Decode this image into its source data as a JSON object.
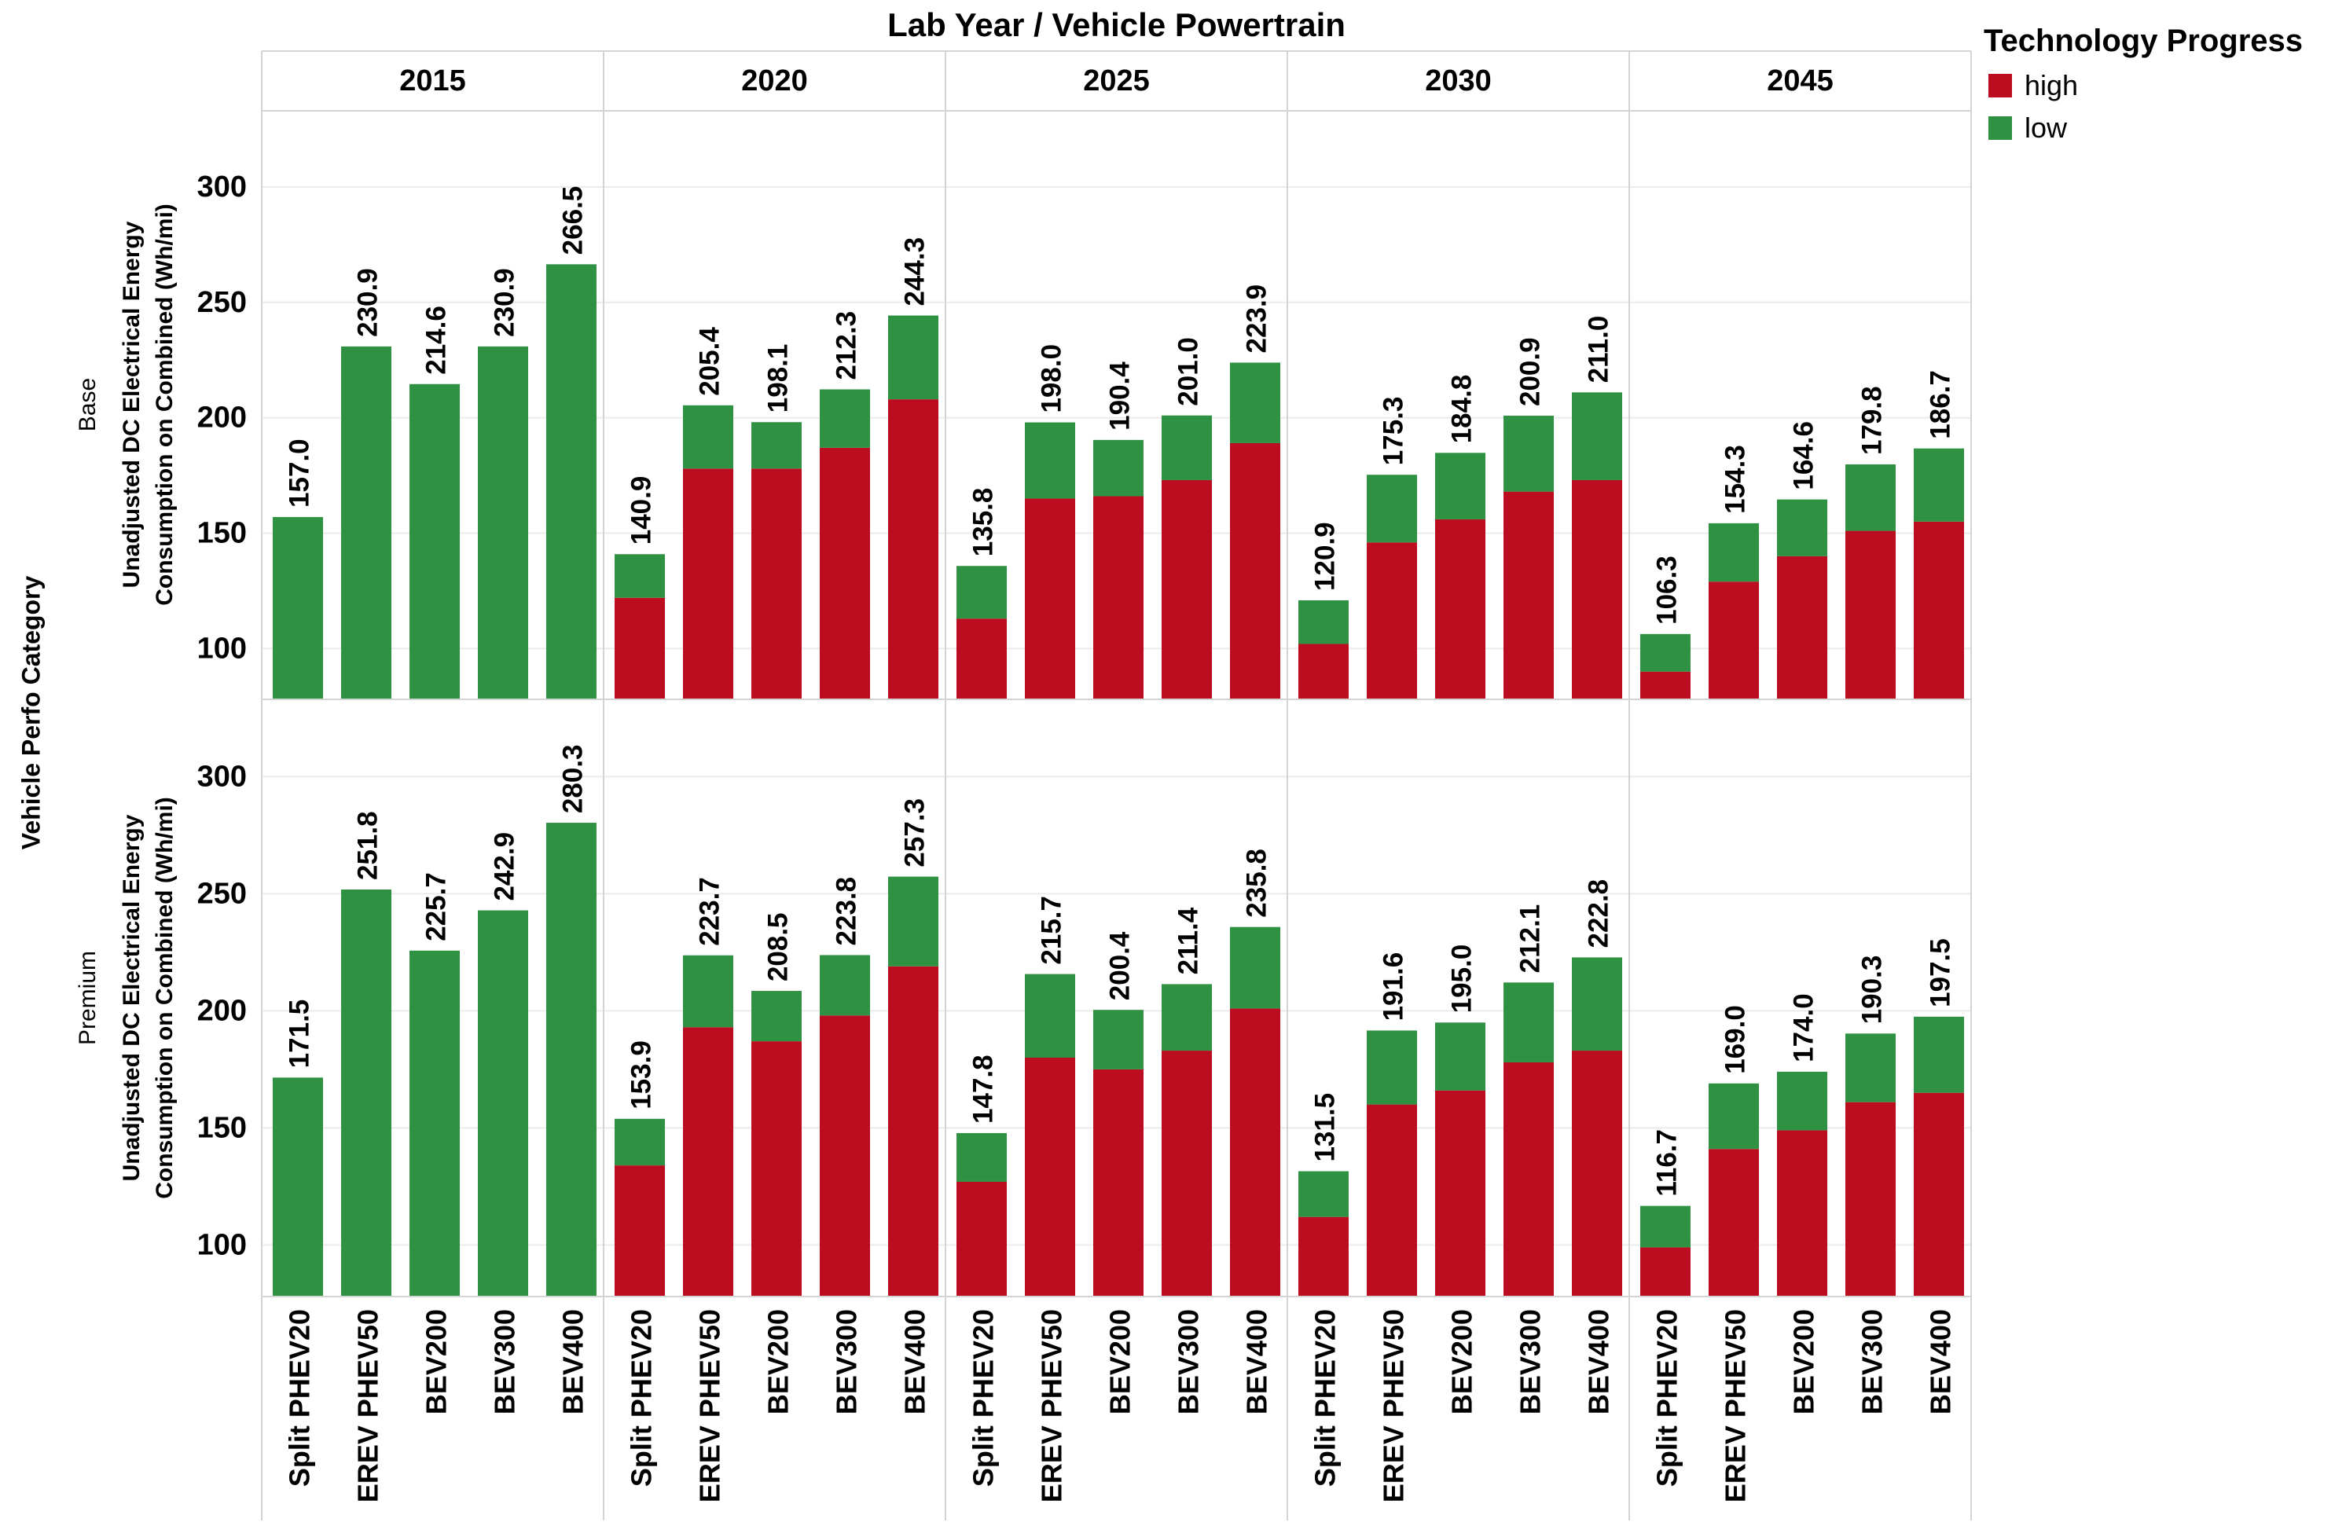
{
  "page": {
    "title": "Lab Year  /  Vehicle Powertrain"
  },
  "legend": {
    "title": "Technology Progress",
    "items": [
      {
        "label": "high",
        "color": "#bb0d1f"
      },
      {
        "label": "low",
        "color": "#2f9142"
      }
    ]
  },
  "row_axis": {
    "title": "Vehicle Perfo Category"
  },
  "value_axis": {
    "title_line1": "Unadjusted DC Electrical Energy",
    "title_line2": "Consumption on Combined (Wh/mi)"
  },
  "chart_data": {
    "type": "bar",
    "subtype": "stacked-small-multiples",
    "title": "Lab Year  /  Vehicle Powertrain",
    "legend_title": "Technology Progress",
    "legend_position": "top-right",
    "grid": true,
    "series_colors": {
      "high": "#bb0d1f",
      "low": "#2f9142"
    },
    "years": [
      "2015",
      "2020",
      "2025",
      "2030",
      "2045"
    ],
    "powertrains": [
      "Split PHEV20",
      "EREV PHEV50",
      "BEV200",
      "BEV300",
      "BEV400"
    ],
    "y_ticks": [
      100,
      150,
      200,
      250,
      300
    ],
    "ylim": [
      78,
      333
    ],
    "ylabel": "Unadjusted DC Electrical Energy Consumption on Combined (Wh/mi)",
    "row_dimension": "Vehicle Perfo Category",
    "rows": [
      {
        "label": "Base",
        "groups": [
          {
            "year": "2015",
            "low_total": [
              157.0,
              230.9,
              214.6,
              230.9,
              266.5
            ],
            "high": [
              null,
              null,
              null,
              null,
              null
            ]
          },
          {
            "year": "2020",
            "low_total": [
              140.9,
              205.4,
              198.1,
              212.3,
              244.3
            ],
            "high": [
              122,
              178,
              178,
              187,
              208
            ]
          },
          {
            "year": "2025",
            "low_total": [
              135.8,
              198.0,
              190.4,
              201.0,
              223.9
            ],
            "high": [
              113,
              165,
              166,
              173,
              189
            ]
          },
          {
            "year": "2030",
            "low_total": [
              120.9,
              175.3,
              184.8,
              200.9,
              211.0
            ],
            "high": [
              102,
              146,
              156,
              168,
              173
            ]
          },
          {
            "year": "2045",
            "low_total": [
              106.3,
              154.3,
              164.6,
              179.8,
              186.7
            ],
            "high": [
              90,
              129,
              140,
              151,
              155
            ]
          }
        ]
      },
      {
        "label": "Premium",
        "groups": [
          {
            "year": "2015",
            "low_total": [
              171.5,
              251.8,
              225.7,
              242.9,
              280.3
            ],
            "high": [
              null,
              null,
              null,
              null,
              null
            ]
          },
          {
            "year": "2020",
            "low_total": [
              153.9,
              223.7,
              208.5,
              223.8,
              257.3
            ],
            "high": [
              134,
              193,
              187,
              198,
              219
            ]
          },
          {
            "year": "2025",
            "low_total": [
              147.8,
              215.7,
              200.4,
              211.4,
              235.8
            ],
            "high": [
              127,
              180,
              175,
              183,
              201
            ]
          },
          {
            "year": "2030",
            "low_total": [
              131.5,
              191.6,
              195.0,
              212.1,
              222.8
            ],
            "high": [
              112,
              160,
              166,
              178,
              183
            ]
          },
          {
            "year": "2045",
            "low_total": [
              116.7,
              169.0,
              174.0,
              190.3,
              197.5
            ],
            "high": [
              99,
              141,
              149,
              161,
              165
            ]
          }
        ]
      }
    ]
  }
}
